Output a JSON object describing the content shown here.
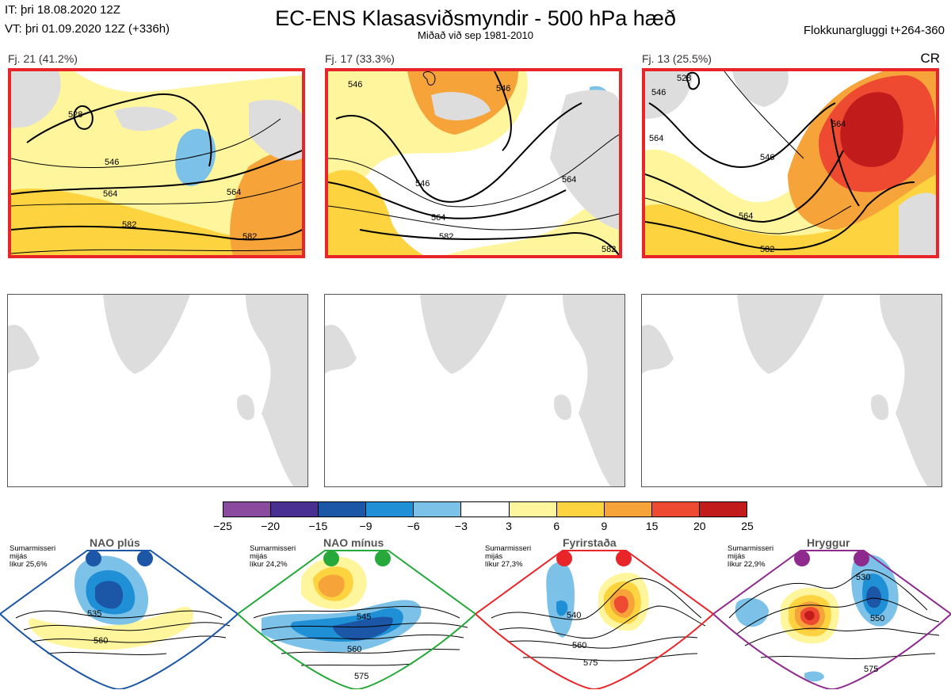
{
  "header": {
    "it": "IT: þri 18.08.2020 12Z",
    "vt": "VT: þri 01.09.2020 12Z  (+336h)",
    "title": "EC-ENS Klasasviðsmyndir - 500 hPa hæð",
    "subtitle": "Miðað við sep 1981-2010",
    "window": "Flokkunargluggi t+264-360",
    "cr": "CR"
  },
  "clusters": [
    {
      "label": "Fj. 21 (41.2%)",
      "contours": [
        "528",
        "546",
        "564",
        "564",
        "582",
        "582"
      ]
    },
    {
      "label": "Fj. 17 (33.3%)",
      "contours": [
        "546",
        "546",
        "546",
        "564",
        "564",
        "582",
        "582"
      ]
    },
    {
      "label": "Fj. 13 (25.5%)",
      "contours": [
        "528",
        "546",
        "546",
        "564",
        "564",
        "564",
        "582"
      ]
    }
  ],
  "colorbar": {
    "ticks": [
      "−25",
      "−20",
      "−15",
      "−9",
      "−6",
      "−3",
      "3",
      "6",
      "9",
      "15",
      "20",
      "25"
    ],
    "colors": [
      "#8a4b9e",
      "#4a2f92",
      "#1c56a6",
      "#1f8fd6",
      "#7cc1e8",
      "#ffffff",
      "#fff59d",
      "#fdd33f",
      "#f6a33a",
      "#ed4a31",
      "#c21b1b"
    ]
  },
  "regimes": [
    {
      "name": "NAO plús",
      "desc": "Sumarmisseri\nmijás\nlíkur 25,6%",
      "contours": [
        "535",
        "560"
      ],
      "color": "#1c56a6"
    },
    {
      "name": "NAO mínus",
      "desc": "Sumarmisseri\nmijás\nlíkur 24,2%",
      "contours": [
        "545",
        "560",
        "575"
      ],
      "color": "#27a83a"
    },
    {
      "name": "Fyrirstaða",
      "desc": "Sumarmisseri\nmijás\nlíkur 27,3%",
      "contours": [
        "540",
        "560",
        "575"
      ],
      "color": "#e8262a"
    },
    {
      "name": "Hryggur",
      "desc": "Sumarmisseri\nmijás\nlíkur 22,9%",
      "contours": [
        "530",
        "550",
        "575"
      ],
      "color": "#8e2a8e"
    }
  ]
}
